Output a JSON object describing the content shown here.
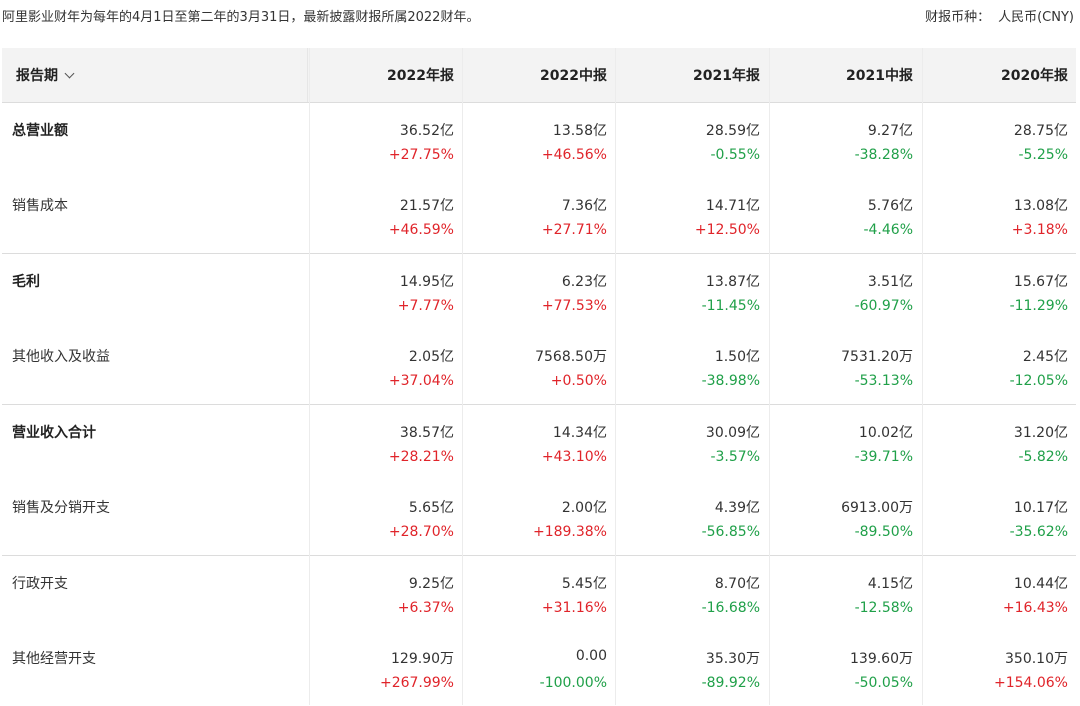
{
  "header_note": "阿里影业财年为每年的4月1日至第二年的3月31日，最新披露财报所属2022财年。",
  "currency": {
    "label": "财报币种：",
    "value": "人民币(CNY)"
  },
  "table": {
    "period_label": "报告期",
    "columns": [
      "2022年报",
      "2022中报",
      "2021年报",
      "2021中报",
      "2020年报"
    ],
    "rows": [
      {
        "label": "总营业额",
        "bold": true,
        "values": [
          "36.52亿",
          "13.58亿",
          "28.59亿",
          "9.27亿",
          "28.75亿"
        ],
        "changes": [
          "+27.75%",
          "+46.56%",
          "-0.55%",
          "-38.28%",
          "-5.25%"
        ]
      },
      {
        "label": "销售成本",
        "bold": false,
        "values": [
          "21.57亿",
          "7.36亿",
          "14.71亿",
          "5.76亿",
          "13.08亿"
        ],
        "changes": [
          "+46.59%",
          "+27.71%",
          "+12.50%",
          "-4.46%",
          "+3.18%"
        ]
      },
      {
        "label": "毛利",
        "bold": true,
        "values": [
          "14.95亿",
          "6.23亿",
          "13.87亿",
          "3.51亿",
          "15.67亿"
        ],
        "changes": [
          "+7.77%",
          "+77.53%",
          "-11.45%",
          "-60.97%",
          "-11.29%"
        ]
      },
      {
        "label": "其他收入及收益",
        "bold": false,
        "values": [
          "2.05亿",
          "7568.50万",
          "1.50亿",
          "7531.20万",
          "2.45亿"
        ],
        "changes": [
          "+37.04%",
          "+0.50%",
          "-38.98%",
          "-53.13%",
          "-12.05%"
        ]
      },
      {
        "label": "营业收入合计",
        "bold": true,
        "values": [
          "38.57亿",
          "14.34亿",
          "30.09亿",
          "10.02亿",
          "31.20亿"
        ],
        "changes": [
          "+28.21%",
          "+43.10%",
          "-3.57%",
          "-39.71%",
          "-5.82%"
        ]
      },
      {
        "label": "销售及分销开支",
        "bold": false,
        "values": [
          "5.65亿",
          "2.00亿",
          "4.39亿",
          "6913.00万",
          "10.17亿"
        ],
        "changes": [
          "+28.70%",
          "+189.38%",
          "-56.85%",
          "-89.50%",
          "-35.62%"
        ]
      },
      {
        "label": "行政开支",
        "bold": false,
        "values": [
          "9.25亿",
          "5.45亿",
          "8.70亿",
          "4.15亿",
          "10.44亿"
        ],
        "changes": [
          "+6.37%",
          "+31.16%",
          "-16.68%",
          "-12.58%",
          "+16.43%"
        ]
      },
      {
        "label": "其他经营开支",
        "bold": false,
        "values": [
          "129.90万",
          "0.00",
          "35.30万",
          "139.60万",
          "350.10万"
        ],
        "changes": [
          "+267.99%",
          "-100.00%",
          "-89.92%",
          "-50.05%",
          "+154.06%"
        ]
      }
    ]
  },
  "colors": {
    "positive": "#e0242a",
    "negative": "#20a049",
    "header_bg": "#f3f3f3"
  }
}
